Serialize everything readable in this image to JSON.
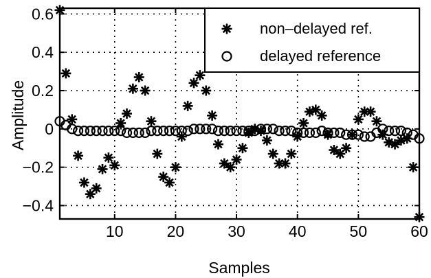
{
  "chart_data": {
    "type": "scatter",
    "xlabel": "Samples",
    "ylabel": "Amplitude",
    "xlim": [
      1,
      60
    ],
    "ylim": [
      -0.47,
      0.63
    ],
    "xticks": [
      10,
      20,
      30,
      40,
      50,
      60
    ],
    "xtick_labels": [
      "10",
      "20",
      "30",
      "40",
      "50",
      "60"
    ],
    "yticks": [
      -0.4,
      -0.2,
      0,
      0.2,
      0.4,
      0.6
    ],
    "ytick_labels": [
      "−0.4",
      "−0.2",
      "0",
      "0.2",
      "0.4",
      "0.6"
    ],
    "grid": true,
    "legend_position": "top-right",
    "series": [
      {
        "name": "non–delayed ref.",
        "marker": "asterisk",
        "x": [
          1,
          2,
          3,
          4,
          5,
          6,
          7,
          8,
          9,
          10,
          11,
          12,
          13,
          14,
          15,
          16,
          17,
          18,
          19,
          20,
          21,
          22,
          23,
          24,
          25,
          26,
          27,
          28,
          29,
          30,
          31,
          32,
          33,
          34,
          35,
          36,
          37,
          38,
          39,
          40,
          41,
          42,
          43,
          44,
          45,
          46,
          47,
          48,
          49,
          50,
          51,
          52,
          53,
          54,
          55,
          56,
          57,
          58,
          59,
          60
        ],
        "y": [
          0.62,
          0.29,
          0.05,
          -0.14,
          -0.28,
          -0.34,
          -0.31,
          -0.21,
          -0.15,
          -0.19,
          0.03,
          0.08,
          0.21,
          0.27,
          0.2,
          0.04,
          -0.13,
          -0.25,
          -0.28,
          -0.2,
          -0.04,
          0.12,
          0.24,
          0.28,
          0.2,
          0.07,
          -0.08,
          -0.18,
          -0.2,
          -0.16,
          -0.1,
          -0.02,
          0.0,
          -0.01,
          -0.06,
          -0.13,
          -0.18,
          -0.18,
          -0.13,
          -0.04,
          0.03,
          0.09,
          0.1,
          0.07,
          -0.03,
          -0.11,
          -0.13,
          -0.1,
          -0.03,
          0.05,
          0.09,
          0.09,
          0.04,
          -0.03,
          -0.07,
          -0.08,
          -0.06,
          -0.05,
          -0.2,
          -0.46
        ]
      },
      {
        "name": "delayed reference",
        "marker": "circle",
        "x": [
          1,
          2,
          3,
          4,
          5,
          6,
          7,
          8,
          9,
          10,
          11,
          12,
          13,
          14,
          15,
          16,
          17,
          18,
          19,
          20,
          21,
          22,
          23,
          24,
          25,
          26,
          27,
          28,
          29,
          30,
          31,
          32,
          33,
          34,
          35,
          36,
          37,
          38,
          39,
          40,
          41,
          42,
          43,
          44,
          45,
          46,
          47,
          48,
          49,
          50,
          51,
          52,
          53,
          54,
          55,
          56,
          57,
          58,
          59,
          60
        ],
        "y": [
          0.04,
          0.02,
          0.0,
          -0.01,
          -0.01,
          -0.01,
          -0.01,
          -0.01,
          -0.01,
          -0.01,
          -0.01,
          -0.02,
          -0.02,
          -0.02,
          -0.02,
          -0.01,
          -0.01,
          -0.01,
          -0.01,
          -0.01,
          -0.01,
          -0.01,
          0.0,
          0.0,
          0.0,
          0.0,
          -0.01,
          -0.01,
          -0.01,
          -0.01,
          -0.01,
          -0.01,
          -0.01,
          0.0,
          0.0,
          0.0,
          -0.01,
          -0.01,
          -0.01,
          -0.02,
          -0.02,
          -0.02,
          -0.02,
          -0.01,
          -0.02,
          -0.02,
          -0.02,
          -0.03,
          -0.03,
          -0.03,
          -0.04,
          -0.04,
          -0.02,
          0.0,
          -0.01,
          -0.01,
          -0.01,
          -0.02,
          -0.03,
          -0.05
        ]
      }
    ]
  }
}
